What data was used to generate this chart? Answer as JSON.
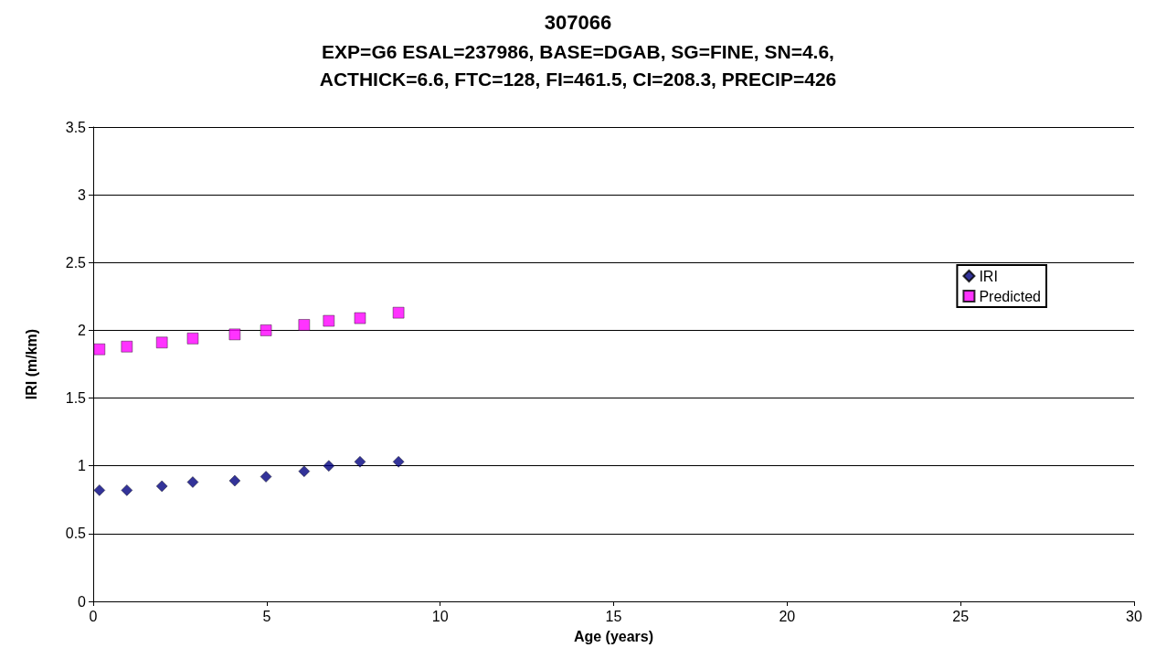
{
  "chart_data": {
    "type": "scatter",
    "title": "307066",
    "subtitle": "EXP=G6 ESAL=237986, BASE=DGAB, SG=FINE, SN=4.6,\nACTHICK=6.6, FTC=128, FI=461.5, CI=208.3, PRECIP=426",
    "xlabel": "Age (years)",
    "ylabel": "IRI (m/km)",
    "x": [
      0.18,
      0.97,
      1.98,
      2.87,
      4.08,
      4.98,
      6.08,
      6.79,
      7.69,
      8.8
    ],
    "series": [
      {
        "name": "IRI",
        "color": "#000080",
        "marker": "diamond",
        "values": [
          0.82,
          0.82,
          0.85,
          0.88,
          0.89,
          0.92,
          0.96,
          1.0,
          1.03,
          1.03
        ]
      },
      {
        "name": "Predicted",
        "color": "#ff00ff",
        "marker": "square",
        "values": [
          1.86,
          1.88,
          1.91,
          1.94,
          1.97,
          2.0,
          2.04,
          2.07,
          2.09,
          2.13
        ]
      }
    ],
    "xlim": [
      0,
      30
    ],
    "xticks": [
      0,
      5,
      10,
      15,
      20,
      25,
      30
    ],
    "ylim": [
      0,
      3.5
    ],
    "yticks": [
      0,
      0.5,
      1,
      1.5,
      2,
      2.5,
      3,
      3.5
    ],
    "grid": "y",
    "legend": "right"
  }
}
